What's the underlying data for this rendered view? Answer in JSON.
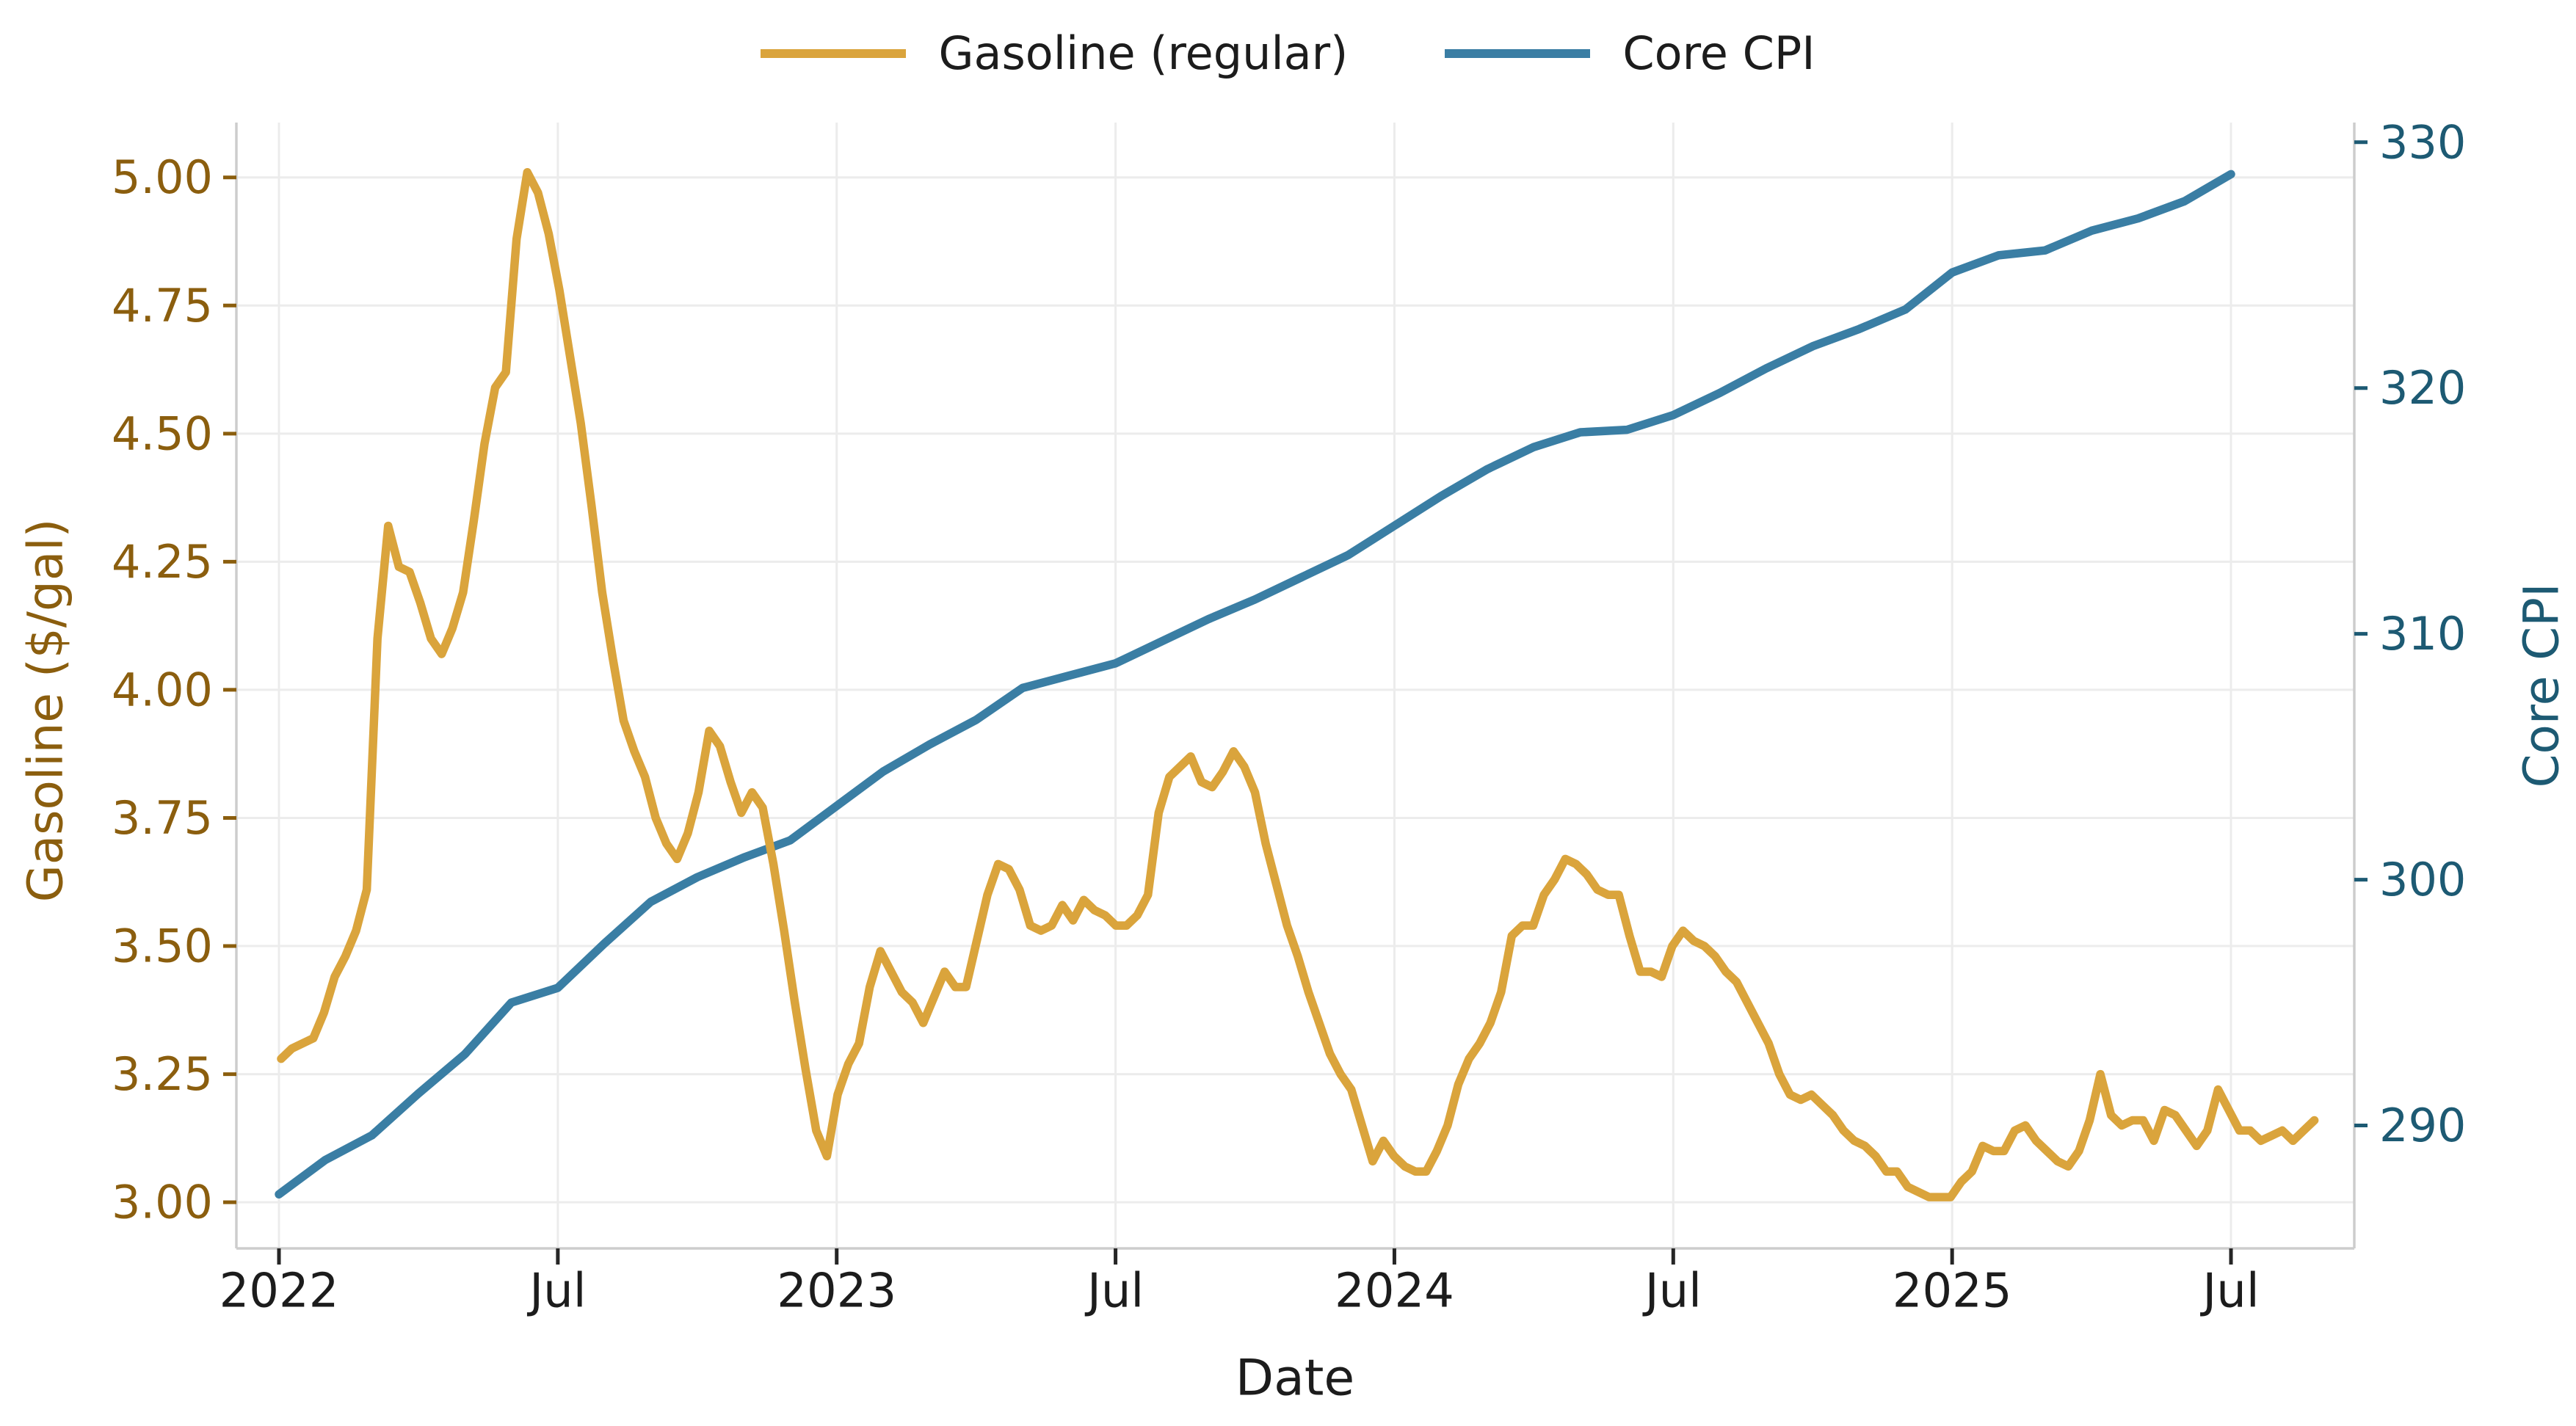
{
  "chart_data": {
    "type": "line",
    "xlabel": "Date",
    "grid": true,
    "legend": [
      "Gasoline (regular)",
      "Core CPI"
    ],
    "legend_position": "top-center",
    "colors": {
      "gasoline_line": "#DAA43C",
      "cpi_line": "#3A7EA4",
      "gasoline_axis_text": "#8B5E0E",
      "cpi_axis_text": "#1D5A73",
      "tick_text": "#1C1C1C",
      "gridline": "#ECECEC",
      "spine": "#CDCDCD"
    },
    "x_axis": {
      "tick_labels": [
        "2022",
        "Jul",
        "2023",
        "Jul",
        "2024",
        "Jul",
        "2025",
        "Jul"
      ],
      "tick_months": [
        0,
        6,
        12,
        18,
        24,
        30,
        36,
        42
      ],
      "start_month": "2022-01"
    },
    "left_axis": {
      "label": "Gasoline ($/gal)",
      "ticks": [
        3.0,
        3.25,
        3.5,
        3.75,
        4.0,
        4.25,
        4.5,
        4.75,
        5.0
      ],
      "range": [
        2.91,
        5.107
      ]
    },
    "right_axis": {
      "label": "Core CPI",
      "ticks": [
        290,
        300,
        310,
        320,
        330
      ],
      "range": [
        285.0,
        330.8
      ]
    },
    "series": [
      {
        "name": "Gasoline (regular)",
        "axis": "left",
        "freq": "weekly",
        "start": "2022-01-03",
        "values": [
          3.28,
          3.3,
          3.31,
          3.32,
          3.37,
          3.44,
          3.48,
          3.53,
          3.61,
          4.1,
          4.32,
          4.24,
          4.23,
          4.17,
          4.1,
          4.07,
          4.12,
          4.19,
          4.33,
          4.48,
          4.59,
          4.62,
          4.88,
          5.01,
          4.97,
          4.89,
          4.78,
          4.65,
          4.52,
          4.36,
          4.19,
          4.06,
          3.94,
          3.88,
          3.83,
          3.75,
          3.7,
          3.67,
          3.72,
          3.8,
          3.92,
          3.89,
          3.82,
          3.76,
          3.8,
          3.77,
          3.66,
          3.53,
          3.39,
          3.26,
          3.14,
          3.09,
          3.21,
          3.27,
          3.31,
          3.42,
          3.49,
          3.45,
          3.41,
          3.39,
          3.35,
          3.4,
          3.45,
          3.42,
          3.42,
          3.51,
          3.6,
          3.66,
          3.65,
          3.61,
          3.54,
          3.53,
          3.54,
          3.58,
          3.55,
          3.59,
          3.57,
          3.56,
          3.54,
          3.54,
          3.56,
          3.6,
          3.76,
          3.83,
          3.85,
          3.87,
          3.82,
          3.81,
          3.84,
          3.88,
          3.85,
          3.8,
          3.7,
          3.62,
          3.54,
          3.48,
          3.41,
          3.35,
          3.29,
          3.25,
          3.22,
          3.15,
          3.08,
          3.12,
          3.09,
          3.07,
          3.06,
          3.06,
          3.1,
          3.15,
          3.23,
          3.28,
          3.31,
          3.35,
          3.41,
          3.52,
          3.54,
          3.54,
          3.6,
          3.63,
          3.67,
          3.66,
          3.64,
          3.61,
          3.6,
          3.6,
          3.52,
          3.45,
          3.45,
          3.44,
          3.5,
          3.53,
          3.51,
          3.5,
          3.48,
          3.45,
          3.43,
          3.39,
          3.35,
          3.31,
          3.25,
          3.21,
          3.2,
          3.21,
          3.19,
          3.17,
          3.14,
          3.12,
          3.11,
          3.09,
          3.06,
          3.06,
          3.03,
          3.02,
          3.01,
          3.01,
          3.01,
          3.04,
          3.06,
          3.11,
          3.1,
          3.1,
          3.14,
          3.15,
          3.12,
          3.1,
          3.08,
          3.07,
          3.1,
          3.16,
          3.25,
          3.17,
          3.15,
          3.16,
          3.16,
          3.12,
          3.18,
          3.17,
          3.14,
          3.11,
          3.14,
          3.22,
          3.18,
          3.14,
          3.14,
          3.12,
          3.13,
          3.14,
          3.12,
          3.14,
          3.16
        ]
      },
      {
        "name": "Core CPI",
        "axis": "right",
        "freq": "monthly",
        "start": "2022-01",
        "values": [
          287.2,
          288.6,
          289.6,
          291.3,
          292.9,
          295.0,
          295.6,
          297.4,
          299.1,
          300.1,
          300.9,
          301.6,
          303.0,
          304.4,
          305.5,
          306.5,
          307.8,
          308.3,
          308.8,
          309.7,
          310.6,
          311.4,
          312.3,
          313.2,
          314.4,
          315.6,
          316.7,
          317.6,
          318.2,
          318.3,
          318.9,
          319.8,
          320.8,
          321.7,
          322.4,
          323.2,
          324.7,
          325.4,
          325.6,
          326.4,
          326.9,
          327.6,
          328.7
        ]
      }
    ]
  }
}
